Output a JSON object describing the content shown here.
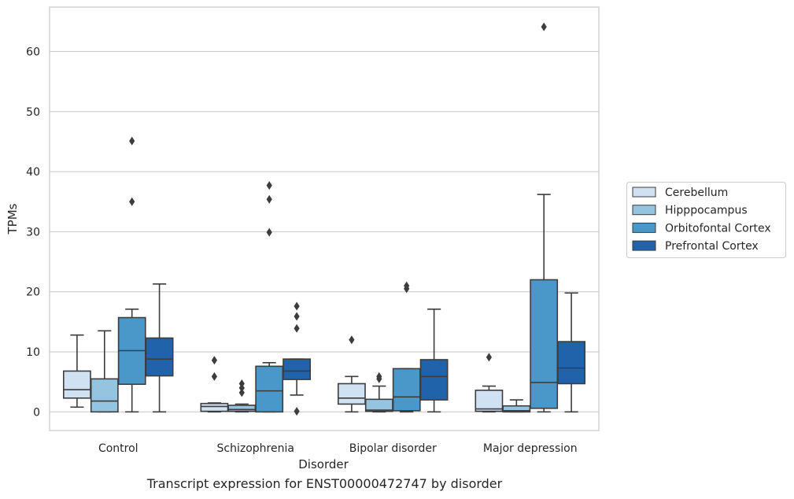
{
  "caption": "Transcript expression for ENST00000472747 by disorder",
  "chart_data": {
    "type": "box",
    "title": "",
    "xlabel": "Disorder",
    "ylabel": "TPMs",
    "ylim": [
      -3.1,
      67.4
    ],
    "yticks": [
      0,
      10,
      20,
      30,
      40,
      50,
      60
    ],
    "grid": "horizontal",
    "legend_position": "right",
    "categories": [
      "Control",
      "Schizophrenia",
      "Bipolar disorder",
      "Major depression"
    ],
    "series": [
      {
        "name": "Cerebellum",
        "color": "#d0e1f2",
        "boxes": [
          {
            "whisker_low": 0.8,
            "q1": 2.3,
            "median": 3.7,
            "q3": 6.8,
            "whisker_high": 12.8,
            "outliers": []
          },
          {
            "whisker_low": 0.0,
            "q1": 0.1,
            "median": 0.9,
            "q3": 1.4,
            "whisker_high": 1.5,
            "outliers": [
              8.6,
              5.9
            ]
          },
          {
            "whisker_low": 0.0,
            "q1": 1.3,
            "median": 2.3,
            "q3": 4.7,
            "whisker_high": 5.9,
            "outliers": [
              12.0
            ]
          },
          {
            "whisker_low": 0.0,
            "q1": 0.1,
            "median": 0.5,
            "q3": 3.6,
            "whisker_high": 4.3,
            "outliers": [
              9.1
            ]
          }
        ]
      },
      {
        "name": "Hipppocampus",
        "color": "#94c4df",
        "boxes": [
          {
            "whisker_low": 0.0,
            "q1": 0.0,
            "median": 1.8,
            "q3": 5.5,
            "whisker_high": 13.5,
            "outliers": []
          },
          {
            "whisker_low": 0.0,
            "q1": 0.1,
            "median": 0.4,
            "q3": 1.1,
            "whisker_high": 1.3,
            "outliers": [
              4.7,
              4.0,
              3.2
            ]
          },
          {
            "whisker_low": 0.0,
            "q1": 0.1,
            "median": 0.3,
            "q3": 2.1,
            "whisker_high": 4.3,
            "outliers": [
              5.9,
              5.5
            ]
          },
          {
            "whisker_low": 0.0,
            "q1": 0.0,
            "median": 0.2,
            "q3": 1.0,
            "whisker_high": 2.0,
            "outliers": []
          }
        ]
      },
      {
        "name": "Orbitofontal Cortex",
        "color": "#4a98c9",
        "boxes": [
          {
            "whisker_low": 0.0,
            "q1": 4.6,
            "median": 10.2,
            "q3": 15.7,
            "whisker_high": 17.1,
            "outliers": [
              45.1,
              35.0
            ]
          },
          {
            "whisker_low": 0.0,
            "q1": 0.0,
            "median": 3.5,
            "q3": 7.6,
            "whisker_high": 8.2,
            "outliers": [
              37.7,
              35.4,
              29.9
            ]
          },
          {
            "whisker_low": 0.0,
            "q1": 0.2,
            "median": 2.5,
            "q3": 7.2,
            "whisker_high": 7.2,
            "outliers": [
              21.0,
              20.5
            ]
          },
          {
            "whisker_low": 0.0,
            "q1": 0.6,
            "median": 4.9,
            "q3": 22.0,
            "whisker_high": 36.2,
            "outliers": [
              64.1
            ]
          }
        ]
      },
      {
        "name": "Prefrontal Cortex",
        "color": "#2163aa",
        "boxes": [
          {
            "whisker_low": 0.0,
            "q1": 6.0,
            "median": 8.8,
            "q3": 12.3,
            "whisker_high": 21.3,
            "outliers": []
          },
          {
            "whisker_low": 2.8,
            "q1": 5.4,
            "median": 6.8,
            "q3": 8.8,
            "whisker_high": 8.8,
            "outliers": [
              17.6,
              15.9,
              13.9,
              0.1
            ]
          },
          {
            "whisker_low": 0.0,
            "q1": 2.0,
            "median": 5.9,
            "q3": 8.7,
            "whisker_high": 17.1,
            "outliers": []
          },
          {
            "whisker_low": 0.0,
            "q1": 4.7,
            "median": 7.3,
            "q3": 11.7,
            "whisker_high": 19.8,
            "outliers": []
          }
        ]
      }
    ]
  }
}
